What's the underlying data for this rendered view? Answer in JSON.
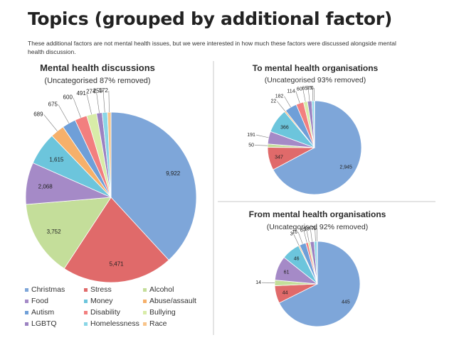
{
  "header": {
    "title": "Topics (grouped by additional factor)",
    "subtitle": "These additional factors are not mental health issues, but we were interested in how much these factors were discussed alongside mental health discussion."
  },
  "legend": {
    "items": [
      {
        "label": "Christmas",
        "color": "#7ea6d9"
      },
      {
        "label": "Stress",
        "color": "#e06a6a"
      },
      {
        "label": "Alcohol",
        "color": "#c4de9a"
      },
      {
        "label": "Food",
        "color": "#a58ac7"
      },
      {
        "label": "Money",
        "color": "#6cc5dc"
      },
      {
        "label": "Abuse/assault",
        "color": "#f6b06a"
      },
      {
        "label": "Autism",
        "color": "#6f9fd8"
      },
      {
        "label": "Disability",
        "color": "#f27f7f"
      },
      {
        "label": "Bullying",
        "color": "#d8eca8"
      },
      {
        "label": "LGBTQ",
        "color": "#9c83c2"
      },
      {
        "label": "Homelessness",
        "color": "#8ad6e6"
      },
      {
        "label": "Race",
        "color": "#f8c48a"
      }
    ]
  },
  "chart_data": [
    {
      "type": "pie",
      "title": "Mental health discussions",
      "subtitle": "(Uncategorised 87% removed)",
      "slices": [
        {
          "label": "9,922",
          "value": 9922,
          "color": "#7ea6d9"
        },
        {
          "label": "5,471",
          "value": 5471,
          "color": "#e06a6a"
        },
        {
          "label": "3,752",
          "value": 3752,
          "color": "#c4de9a"
        },
        {
          "label": "2,068",
          "value": 2068,
          "color": "#a58ac7"
        },
        {
          "label": "1,615",
          "value": 1615,
          "color": "#6cc5dc"
        },
        {
          "label": "689",
          "value": 689,
          "color": "#f6b06a"
        },
        {
          "label": "675",
          "value": 675,
          "color": "#6f9fd8"
        },
        {
          "label": "600",
          "value": 600,
          "color": "#f27f7f"
        },
        {
          "label": "491",
          "value": 491,
          "color": "#d8eca8"
        },
        {
          "label": "274",
          "value": 274,
          "color": "#9c83c2"
        },
        {
          "label": "259",
          "value": 259,
          "color": "#8ad6e6"
        },
        {
          "label": "172",
          "value": 172,
          "color": "#f8c48a"
        }
      ]
    },
    {
      "type": "pie",
      "title": "To mental health organisations",
      "subtitle": "(Uncategorised 93% removed)",
      "slices": [
        {
          "label": "2,945",
          "value": 2945,
          "color": "#7ea6d9"
        },
        {
          "label": "347",
          "value": 347,
          "color": "#e06a6a"
        },
        {
          "label": "50",
          "value": 50,
          "color": "#c4de9a"
        },
        {
          "label": "191",
          "value": 191,
          "color": "#a58ac7"
        },
        {
          "label": "366",
          "value": 366,
          "color": "#6cc5dc"
        },
        {
          "label": "22",
          "value": 22,
          "color": "#f6b06a"
        },
        {
          "label": "182",
          "value": 182,
          "color": "#6f9fd8"
        },
        {
          "label": "114",
          "value": 114,
          "color": "#f27f7f"
        },
        {
          "label": "60",
          "value": 60,
          "color": "#d8eca8"
        },
        {
          "label": "65",
          "value": 65,
          "color": "#9c83c2"
        },
        {
          "label": "35",
          "value": 35,
          "color": "#8ad6e6"
        },
        {
          "label": "6",
          "value": 6,
          "color": "#f8c48a"
        }
      ]
    },
    {
      "type": "pie",
      "title": "From mental health organisations",
      "subtitle": "(Uncategorised 92% removed)",
      "slices": [
        {
          "label": "445",
          "value": 445,
          "color": "#7ea6d9"
        },
        {
          "label": "44",
          "value": 44,
          "color": "#e06a6a"
        },
        {
          "label": "14",
          "value": 14,
          "color": "#c4de9a"
        },
        {
          "label": "61",
          "value": 61,
          "color": "#a58ac7"
        },
        {
          "label": "46",
          "value": 46,
          "color": "#6cc5dc"
        },
        {
          "label": "3",
          "value": 3,
          "color": "#f6b06a"
        },
        {
          "label": "16",
          "value": 16,
          "color": "#6f9fd8"
        },
        {
          "label": "6",
          "value": 6,
          "color": "#f27f7f"
        },
        {
          "label": "5",
          "value": 5,
          "color": "#d8eca8"
        },
        {
          "label": "10",
          "value": 10,
          "color": "#9c83c2"
        },
        {
          "label": "7",
          "value": 7,
          "color": "#8ad6e6"
        },
        {
          "label": "1",
          "value": 1,
          "color": "#f8c48a"
        }
      ]
    }
  ]
}
